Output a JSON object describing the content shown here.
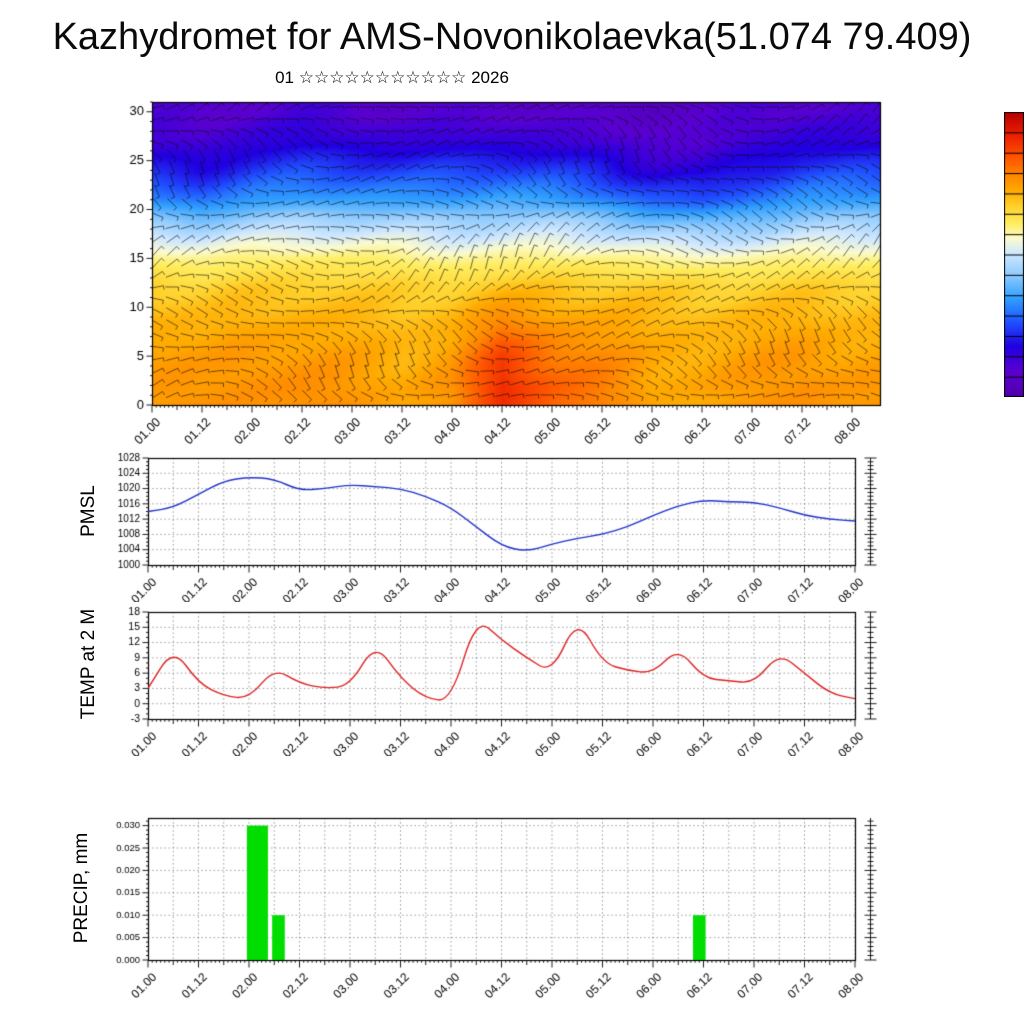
{
  "title": "Kazhydromet for AMS-Novonikolaevka(51.074 79.409)",
  "subtitle": "01 ☆☆☆☆☆☆☆☆☆☆☆ 2026",
  "time_ticks": [
    "01.00",
    "01.12",
    "02.00",
    "02.12",
    "03.00",
    "03.12",
    "04.00",
    "04.12",
    "05.00",
    "05.12",
    "06.00",
    "06.12",
    "07.00",
    "07.12",
    "08.00"
  ],
  "chart_data": [
    {
      "id": "cross_section",
      "type": "heatmap",
      "title": "01 ☆☆☆☆☆☆☆☆☆☆☆ 2026",
      "ylim": [
        0,
        30
      ],
      "yticks": [
        0,
        5,
        10,
        15,
        20,
        25,
        30
      ],
      "x_tick_labels": [
        "01.00",
        "01.12",
        "02.00",
        "02.12",
        "03.00",
        "03.12",
        "04.00",
        "04.12",
        "05.00",
        "05.12",
        "06.00",
        "06.12",
        "07.00",
        "07.12",
        "08.00"
      ],
      "overlay": "wind-barbs",
      "legend_position": "colorbar-right",
      "grid": {
        "levels": [
          30,
          27,
          24,
          21,
          19,
          17,
          15,
          12,
          9,
          5,
          2,
          0
        ],
        "columns": [
          "01.00",
          "01.12",
          "02.00",
          "02.12",
          "03.00",
          "03.12",
          "04.00",
          "04.12",
          "05.00",
          "05.12",
          "06.00",
          "06.12",
          "07.00",
          "07.12",
          "08.00"
        ],
        "values": [
          [
            1.5,
            1.3,
            1.4,
            1.5,
            1.4,
            1.3,
            1.4,
            1.5,
            1.4,
            1.3,
            1.2,
            1.3,
            1.4,
            1.5,
            1.4
          ],
          [
            1.8,
            1.7,
            1.9,
            2.0,
            1.9,
            1.8,
            1.9,
            2.0,
            1.9,
            1.8,
            1.6,
            1.5,
            1.8,
            2.0,
            1.9
          ],
          [
            2.6,
            2.4,
            2.8,
            2.9,
            2.8,
            2.7,
            2.8,
            2.9,
            2.8,
            2.6,
            2.2,
            2.1,
            2.5,
            2.8,
            2.8
          ],
          [
            3.7,
            3.5,
            3.8,
            3.9,
            3.8,
            3.7,
            3.7,
            3.9,
            3.8,
            3.6,
            3.2,
            3.1,
            3.5,
            3.8,
            3.8
          ],
          [
            4.6,
            4.5,
            4.8,
            4.9,
            4.8,
            4.7,
            4.6,
            4.7,
            4.7,
            4.6,
            4.3,
            4.2,
            4.5,
            4.7,
            4.7
          ],
          [
            5.5,
            5.4,
            5.6,
            5.7,
            5.6,
            5.5,
            5.3,
            5.3,
            5.4,
            5.4,
            5.2,
            5.1,
            5.3,
            5.5,
            5.5
          ],
          [
            6.2,
            6.1,
            6.3,
            6.4,
            6.3,
            6.2,
            6.0,
            6.0,
            6.1,
            6.1,
            6.0,
            6.0,
            6.1,
            6.2,
            6.2
          ],
          [
            6.9,
            6.8,
            7.0,
            7.1,
            7.0,
            6.9,
            6.9,
            7.0,
            7.0,
            6.9,
            6.8,
            6.8,
            6.9,
            7.0,
            7.0
          ],
          [
            7.2,
            7.1,
            7.3,
            7.4,
            7.3,
            7.2,
            7.3,
            7.8,
            7.5,
            7.3,
            7.1,
            7.1,
            7.2,
            7.3,
            7.3
          ],
          [
            7.5,
            7.4,
            7.6,
            7.6,
            7.5,
            7.4,
            7.7,
            8.8,
            8.2,
            7.8,
            7.3,
            7.3,
            7.4,
            7.6,
            7.5
          ],
          [
            7.6,
            7.5,
            7.7,
            7.7,
            7.6,
            7.5,
            7.8,
            9.2,
            8.5,
            8.0,
            7.4,
            7.4,
            7.5,
            7.7,
            7.6
          ],
          [
            7.6,
            7.6,
            7.7,
            7.7,
            7.6,
            7.5,
            7.8,
            9.1,
            8.5,
            8.0,
            7.4,
            7.4,
            7.5,
            7.7,
            7.6
          ]
        ]
      },
      "colormap": [
        [
          0.0,
          "#4b0096"
        ],
        [
          1.4,
          "#5a00d2"
        ],
        [
          2.2,
          "#2000e0"
        ],
        [
          3.0,
          "#2050ff"
        ],
        [
          3.8,
          "#30a0ff"
        ],
        [
          4.6,
          "#90ccff"
        ],
        [
          5.3,
          "#cfe8ff"
        ],
        [
          5.8,
          "#fbfbd0"
        ],
        [
          6.3,
          "#ffee60"
        ],
        [
          6.9,
          "#ffd02a"
        ],
        [
          7.4,
          "#ffaa00"
        ],
        [
          7.9,
          "#ff8800"
        ],
        [
          8.5,
          "#ff5500"
        ],
        [
          9.2,
          "#ee2200"
        ],
        [
          10.0,
          "#bb0000"
        ]
      ]
    },
    {
      "id": "pmsl",
      "type": "line",
      "name": "PMSL",
      "color": "#2233cc",
      "ylim": [
        1000,
        1028
      ],
      "yticks": [
        1000,
        1004,
        1008,
        1012,
        1016,
        1020,
        1024,
        1028
      ],
      "x_tick_labels": [
        "01.00",
        "01.12",
        "02.00",
        "02.12",
        "03.00",
        "03.12",
        "04.00",
        "04.12",
        "05.00",
        "05.12",
        "06.00",
        "06.12",
        "07.00",
        "07.12",
        "08.00"
      ],
      "x": [
        "01.00",
        "01.06",
        "01.12",
        "01.18",
        "02.00",
        "02.06",
        "02.12",
        "02.18",
        "03.00",
        "03.06",
        "03.12",
        "03.18",
        "04.00",
        "04.06",
        "04.12",
        "04.18",
        "05.00",
        "05.06",
        "05.12",
        "05.18",
        "06.00",
        "06.06",
        "06.12",
        "06.18",
        "07.00",
        "07.06",
        "07.12",
        "07.18",
        "08.00"
      ],
      "values": [
        1014,
        1015,
        1018.5,
        1022,
        1023,
        1022.5,
        1019.5,
        1020,
        1021,
        1020.5,
        1020,
        1018,
        1015,
        1010,
        1005,
        1003.5,
        1005.5,
        1007,
        1008,
        1010,
        1013,
        1015.5,
        1017,
        1016.5,
        1016.5,
        1015,
        1013,
        1012,
        1011.5
      ]
    },
    {
      "id": "temp2m",
      "type": "line",
      "name": "TEMP at 2 M",
      "color": "#dd2222",
      "ylim": [
        -3,
        18
      ],
      "yticks": [
        -3,
        0,
        3,
        6,
        9,
        12,
        15,
        18
      ],
      "x_tick_labels": [
        "01.00",
        "01.12",
        "02.00",
        "02.12",
        "03.00",
        "03.12",
        "04.00",
        "04.12",
        "05.00",
        "05.12",
        "06.00",
        "06.12",
        "07.00",
        "07.12",
        "08.00"
      ],
      "x": [
        "01.00",
        "01.06",
        "01.12",
        "01.18",
        "02.00",
        "02.06",
        "02.12",
        "02.18",
        "03.00",
        "03.06",
        "03.12",
        "03.18",
        "04.00",
        "04.06",
        "04.12",
        "04.18",
        "05.00",
        "05.06",
        "05.12",
        "05.18",
        "06.00",
        "06.06",
        "06.12",
        "06.18",
        "07.00",
        "07.06",
        "07.12",
        "07.18",
        "08.00"
      ],
      "values": [
        3,
        11,
        4,
        1.5,
        1,
        7,
        4,
        3,
        3.5,
        12,
        5,
        1,
        0.5,
        17,
        12.5,
        9,
        6,
        17,
        8,
        6.5,
        6,
        11,
        5,
        4.5,
        4,
        10,
        6,
        2,
        1
      ]
    },
    {
      "id": "precip",
      "type": "bar",
      "name": "PRECIP, mm",
      "color": "#00dd00",
      "ylim": [
        0,
        0.03
      ],
      "yticks": [
        0,
        0.005,
        0.01,
        0.015,
        0.02,
        0.025,
        0.03
      ],
      "x_tick_labels": [
        "01.00",
        "01.12",
        "02.00",
        "02.12",
        "03.00",
        "03.12",
        "04.00",
        "04.12",
        "05.00",
        "05.12",
        "06.00",
        "06.12",
        "07.00",
        "07.12",
        "08.00"
      ],
      "bars": [
        {
          "time": "02.02",
          "value": 0.03,
          "width_hours": 5
        },
        {
          "time": "02.07",
          "value": 0.01,
          "width_hours": 3
        },
        {
          "time": "06.11",
          "value": 0.01,
          "width_hours": 3
        }
      ]
    }
  ]
}
